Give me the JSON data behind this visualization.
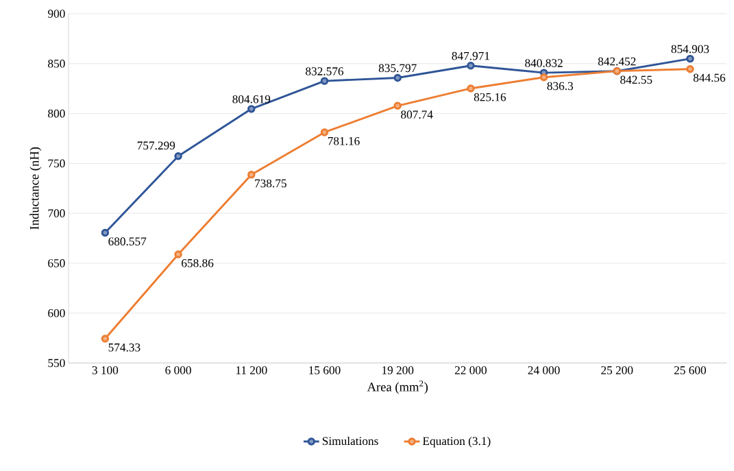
{
  "chart_data": {
    "type": "line",
    "xlabel": "Area (mm$^{2}$)",
    "ylabel": "Inductance (nH)",
    "categories": [
      "3 100",
      "6 000",
      "11 200",
      "15 600",
      "19 200",
      "22 000",
      "24 000",
      "25 200",
      "25 600"
    ],
    "series": [
      {
        "name": "Simulations",
        "color": "#2f5597",
        "values": [
          680.557,
          757.299,
          804.619,
          832.576,
          835.797,
          847.971,
          840.832,
          842.452,
          854.903
        ]
      },
      {
        "name": "Equation (3.1)",
        "color": "#ed7d31",
        "values": [
          574.33,
          658.86,
          738.75,
          781.16,
          807.74,
          825.16,
          836.3,
          842.55,
          844.56
        ]
      }
    ],
    "ylim": [
      550,
      900
    ],
    "yticks": [
      550,
      600,
      650,
      700,
      750,
      800,
      850,
      900
    ],
    "grid": "y",
    "legend": "bottom",
    "marker": "circle",
    "line_style": "solid",
    "data_labels": true
  }
}
